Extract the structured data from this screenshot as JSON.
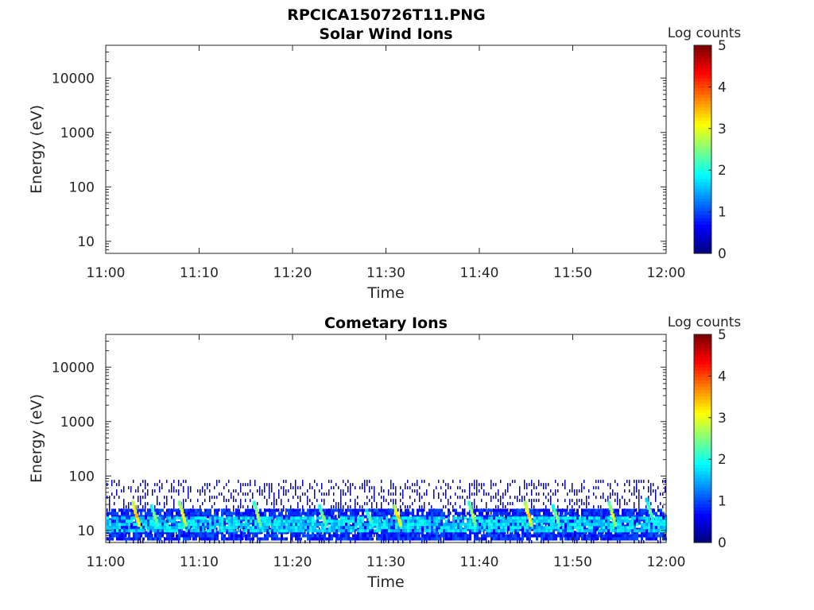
{
  "figure_title": "RPCICA150726T11.PNG",
  "colors": {
    "axis": "#262626",
    "background": "#ffffff"
  },
  "chart_data": [
    {
      "type": "heatmap",
      "title": "Solar Wind Ions",
      "xlabel": "Time",
      "ylabel": "Energy (eV)",
      "x_ticks": [
        "11:00",
        "11:10",
        "11:20",
        "11:30",
        "11:40",
        "11:50",
        "12:00"
      ],
      "xlim": [
        "11:00",
        "12:00"
      ],
      "y_scale": "log",
      "y_ticks": [
        10,
        100,
        1000,
        10000
      ],
      "y_tick_labels": [
        "10",
        "100",
        "1000",
        "10000"
      ],
      "ylim": [
        6,
        40000
      ],
      "colorbar": {
        "label": "Log counts",
        "range": [
          0,
          5
        ],
        "ticks": [
          "0",
          "1",
          "2",
          "3",
          "4",
          "5"
        ],
        "colormap": "jet"
      },
      "data_present": false,
      "bands": []
    },
    {
      "type": "heatmap",
      "title": "Cometary Ions",
      "xlabel": "Time",
      "ylabel": "Energy (eV)",
      "x_ticks": [
        "11:00",
        "11:10",
        "11:20",
        "11:30",
        "11:40",
        "11:50",
        "12:00"
      ],
      "xlim": [
        "11:00",
        "12:00"
      ],
      "y_scale": "log",
      "y_ticks": [
        10,
        100,
        1000,
        10000
      ],
      "y_tick_labels": [
        "10",
        "100",
        "1000",
        "10000"
      ],
      "ylim": [
        6,
        40000
      ],
      "colorbar": {
        "label": "Log counts",
        "range": [
          0,
          5
        ],
        "ticks": [
          "0",
          "1",
          "2",
          "3",
          "4",
          "5"
        ],
        "colormap": "jet"
      },
      "data_present": true,
      "bands": [
        {
          "e_min_ev": 6,
          "e_max_ev": 85,
          "log_counts": 0.15,
          "density": 0.35
        },
        {
          "e_min_ev": 7,
          "e_max_ev": 25,
          "log_counts": 0.8,
          "density": 0.85
        },
        {
          "e_min_ev": 10,
          "e_max_ev": 18,
          "log_counts": 1.7,
          "density": 0.8
        }
      ],
      "bursts": [
        {
          "time": "11:03",
          "e_min_ev": 12,
          "e_max_ev": 35,
          "log_counts": 3.5
        },
        {
          "time": "11:05",
          "e_min_ev": 12,
          "e_max_ev": 30,
          "log_counts": 2.6
        },
        {
          "time": "11:08",
          "e_min_ev": 12,
          "e_max_ev": 35,
          "log_counts": 3.2
        },
        {
          "time": "11:16",
          "e_min_ev": 12,
          "e_max_ev": 35,
          "log_counts": 2.8
        },
        {
          "time": "11:23",
          "e_min_ev": 12,
          "e_max_ev": 30,
          "log_counts": 2.6
        },
        {
          "time": "11:28",
          "e_min_ev": 12,
          "e_max_ev": 25,
          "log_counts": 2.4
        },
        {
          "time": "11:31",
          "e_min_ev": 12,
          "e_max_ev": 30,
          "log_counts": 3.4
        },
        {
          "time": "11:39",
          "e_min_ev": 12,
          "e_max_ev": 35,
          "log_counts": 2.8
        },
        {
          "time": "11:45",
          "e_min_ev": 12,
          "e_max_ev": 35,
          "log_counts": 3.4
        },
        {
          "time": "11:48",
          "e_min_ev": 12,
          "e_max_ev": 30,
          "log_counts": 2.6
        },
        {
          "time": "11:54",
          "e_min_ev": 12,
          "e_max_ev": 35,
          "log_counts": 3.0
        },
        {
          "time": "11:58",
          "e_min_ev": 15,
          "e_max_ev": 40,
          "log_counts": 2.4
        }
      ]
    }
  ]
}
